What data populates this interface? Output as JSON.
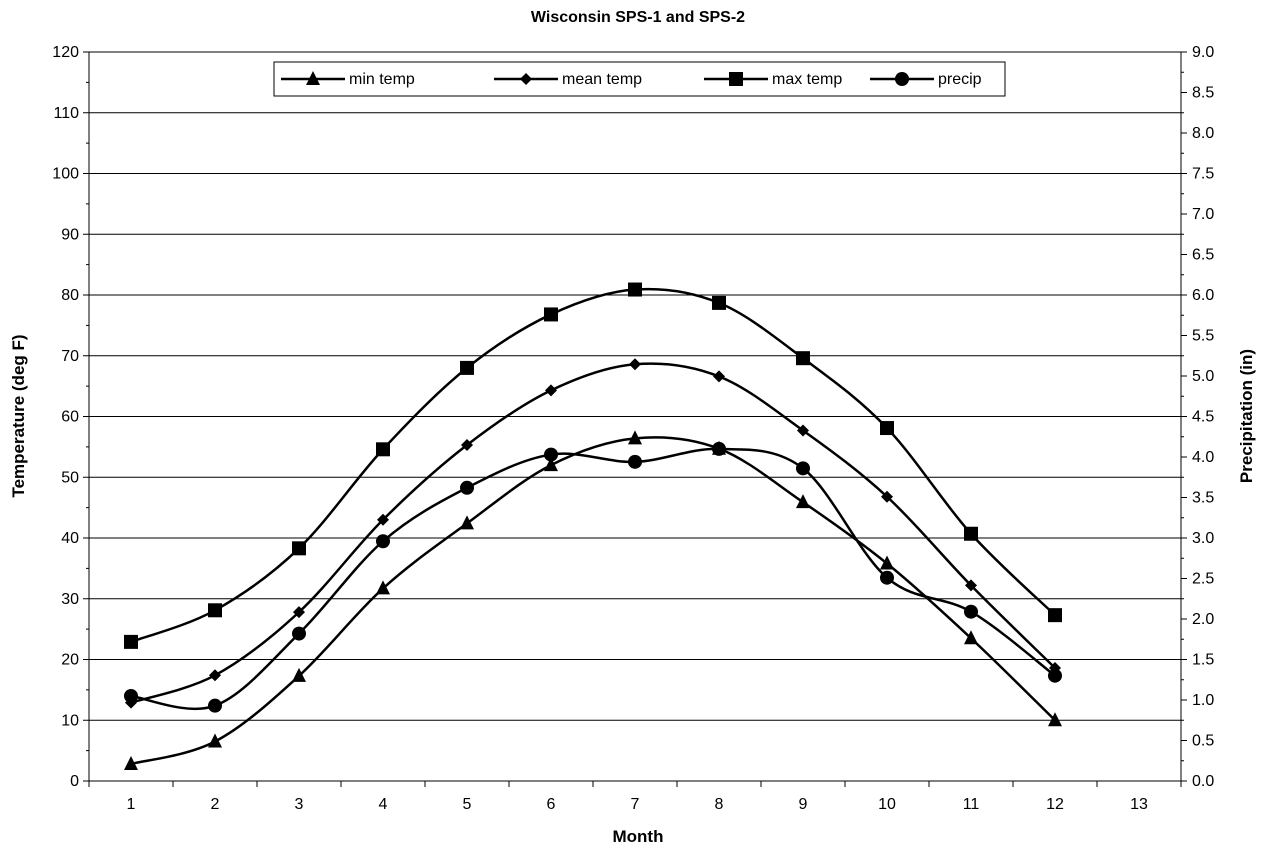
{
  "chart_data": {
    "type": "line",
    "title": "Wisconsin SPS-1 and SPS-2",
    "xlabel": "Month",
    "ylabel": "Temperature (deg F)",
    "y2label": "Precipitation (in)",
    "x_ticks": [
      1,
      2,
      3,
      4,
      5,
      6,
      7,
      8,
      9,
      10,
      11,
      12,
      13
    ],
    "xlim": [
      0.5,
      13.5
    ],
    "ylim": [
      0,
      120
    ],
    "y_ticks": [
      0,
      10,
      20,
      30,
      40,
      50,
      60,
      70,
      80,
      90,
      100,
      110,
      120
    ],
    "y2lim": [
      0,
      9
    ],
    "y2_ticks": [
      "0.0",
      "0.5",
      "1.0",
      "1.5",
      "2.0",
      "2.5",
      "3.0",
      "3.5",
      "4.0",
      "4.5",
      "5.0",
      "5.5",
      "6.0",
      "6.5",
      "7.0",
      "7.5",
      "8.0",
      "8.5",
      "9.0"
    ],
    "grid": "horizontal",
    "smooth": true,
    "legend_position": "top-center",
    "x": [
      1,
      2,
      3,
      4,
      5,
      6,
      7,
      8,
      9,
      10,
      11,
      12
    ],
    "series": [
      {
        "name": "min temp",
        "marker": "triangle",
        "axis": "left",
        "values": [
          2.8,
          6.5,
          17.3,
          31.7,
          42.4,
          52.0,
          56.4,
          54.7,
          45.9,
          35.8,
          23.5,
          10.0
        ]
      },
      {
        "name": "mean temp",
        "marker": "diamond",
        "axis": "left",
        "values": [
          12.9,
          17.4,
          27.8,
          43.0,
          55.3,
          64.3,
          68.6,
          66.6,
          57.7,
          46.8,
          32.2,
          18.6
        ]
      },
      {
        "name": "max temp",
        "marker": "square",
        "axis": "left",
        "values": [
          22.9,
          28.1,
          38.3,
          54.6,
          68.0,
          76.8,
          80.9,
          78.7,
          69.6,
          58.1,
          40.7,
          27.3
        ]
      },
      {
        "name": "precip",
        "marker": "circle",
        "axis": "right",
        "values": [
          1.05,
          0.93,
          1.82,
          2.96,
          3.62,
          4.03,
          3.94,
          4.1,
          3.86,
          2.51,
          2.09,
          1.3
        ]
      }
    ],
    "colors": {
      "line": "#000000",
      "grid": "#000000",
      "background": "#ffffff"
    }
  }
}
